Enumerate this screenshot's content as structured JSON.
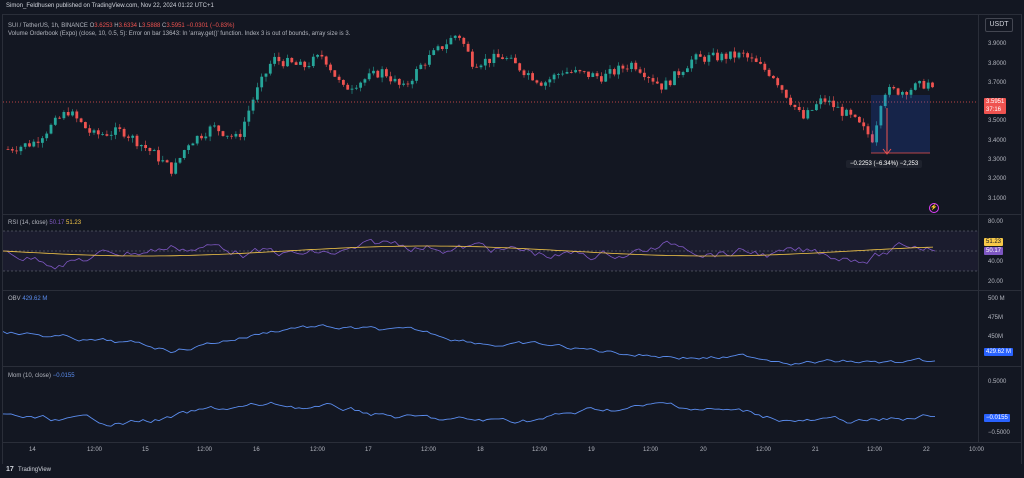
{
  "header": {
    "published": "Simon_Feldhusen published on TradingView.com, Nov 22, 2024 01:22 UTC+1"
  },
  "symbol_bar": {
    "symbol": "SUI / TetherUS, 1h, BINANCE",
    "open_label": "O",
    "open": "3.6253",
    "high_label": "H",
    "high": "3.6334",
    "low_label": "L",
    "low": "3.5888",
    "close_label": "C",
    "close": "3.5951",
    "change": "−0.0301 (−0.83%)",
    "indicator_error": "Volume Orderbook (Expo) (close, 10, 0.5, 5): Error on bar 13643: In 'array.get()' function. Index 3 is out of bounds, array size is 3."
  },
  "currency_button": "USDT",
  "price_axis": [
    "3.9000",
    "3.8000",
    "3.7000",
    "3.5000",
    "3.4000",
    "3.3000",
    "3.2000",
    "3.1000"
  ],
  "price_tag": {
    "value": "3.5951",
    "countdown": "37:16"
  },
  "measure_label": "−0.2253 (−6.34%) −2,253",
  "rsi": {
    "legend": "RSI (14, close)",
    "value1": "50.17",
    "value2": "51.23",
    "axis": [
      "80.00",
      "40.00",
      "20.00"
    ],
    "tag_a": "51.23",
    "tag_b": "50.17"
  },
  "obv": {
    "legend": "OBV",
    "value": "429.62 M",
    "axis": [
      "500 M",
      "475M",
      "450M"
    ],
    "tag": "429.62 M"
  },
  "mom": {
    "legend": "Mom (10, close)",
    "value": "−0.0155",
    "axis": [
      "0.5000",
      "−0.5000"
    ],
    "tag": "−0.0155"
  },
  "time_axis": [
    "14",
    "12:00",
    "15",
    "12:00",
    "16",
    "12:00",
    "17",
    "12:00",
    "18",
    "12:00",
    "19",
    "12:00",
    "20",
    "12:00",
    "21",
    "12:00",
    "22",
    "10:00"
  ],
  "footer": {
    "brand": "TradingView"
  },
  "colors": {
    "bg": "#131722",
    "up": "#26a69a",
    "down": "#ef5350",
    "rsi": "#7e57c2",
    "signal": "#f7c948",
    "line": "#5b8def",
    "tag_blue": "#2962ff"
  },
  "chart_data": [
    {
      "type": "candlestick",
      "title": "SUI / TetherUS, 1h",
      "ylim": [
        3.05,
        3.95
      ],
      "last_price": 3.5951
    },
    {
      "type": "line",
      "title": "RSI (14, close)",
      "ylim": [
        20,
        80
      ],
      "last": [
        50.17,
        51.23
      ]
    },
    {
      "type": "line",
      "title": "OBV",
      "ylim": [
        420,
        505
      ],
      "last": 429.62
    },
    {
      "type": "line",
      "title": "Mom (10, close)",
      "ylim": [
        -0.6,
        0.6
      ],
      "last": -0.0155
    }
  ]
}
